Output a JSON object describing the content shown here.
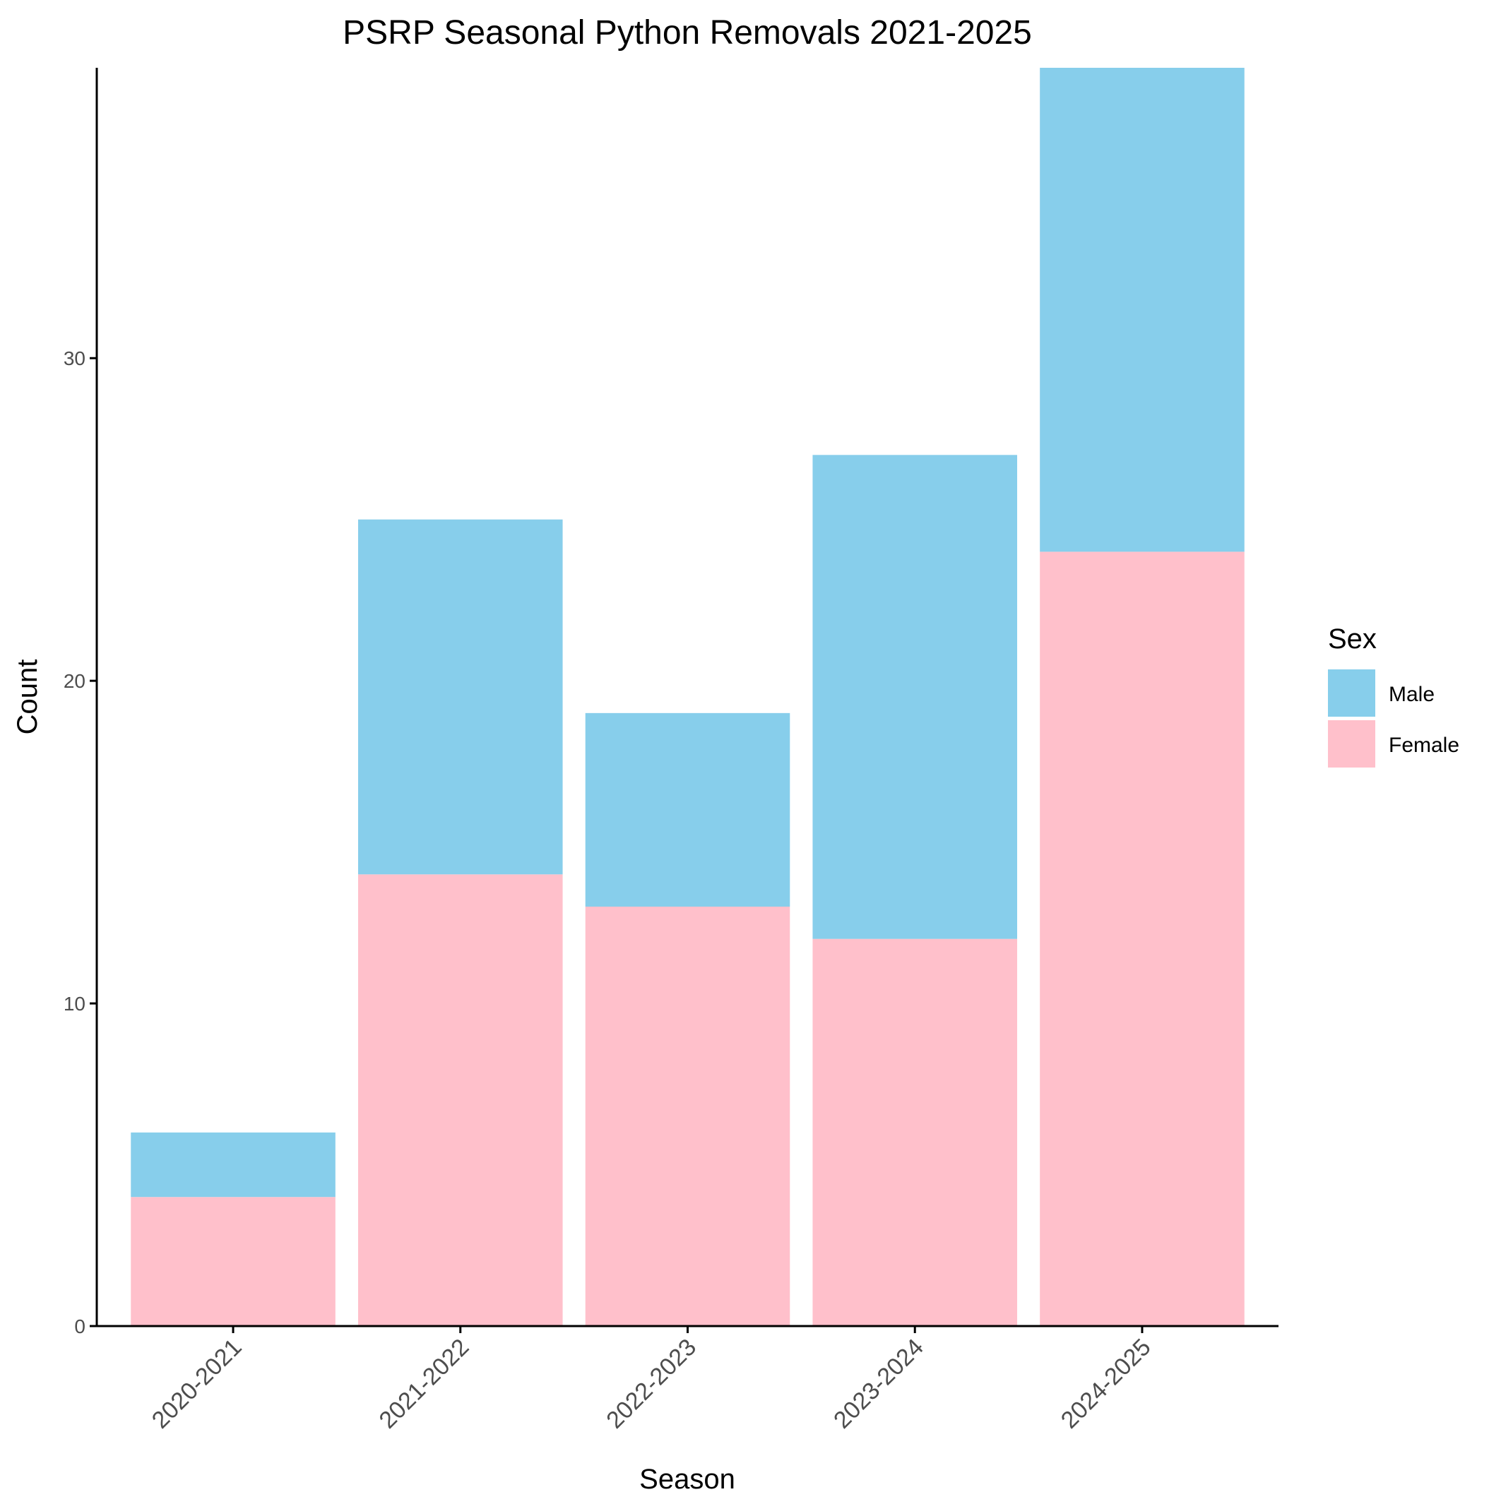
{
  "chart_data": {
    "type": "bar",
    "stacked": true,
    "title": "PSRP Seasonal Python Removals 2021-2025",
    "xlabel": "Season",
    "ylabel": "Count",
    "categories": [
      "2020-2021",
      "2021-2022",
      "2022-2023",
      "2023-2024",
      "2024-2025"
    ],
    "series": [
      {
        "name": "Female",
        "values": [
          4,
          14,
          13,
          12,
          24
        ],
        "color": "#FFC0CB"
      },
      {
        "name": "Male",
        "values": [
          2,
          11,
          6,
          15,
          15
        ],
        "color": "#87CEEB"
      }
    ],
    "ylim": [
      0,
      39
    ],
    "yticks": [
      0,
      10,
      20,
      30
    ],
    "grid": false,
    "legend": {
      "title": "Sex",
      "position": "right",
      "entries": [
        {
          "label": "Male",
          "color": "#87CEEB"
        },
        {
          "label": "Female",
          "color": "#FFC0CB"
        }
      ]
    }
  }
}
